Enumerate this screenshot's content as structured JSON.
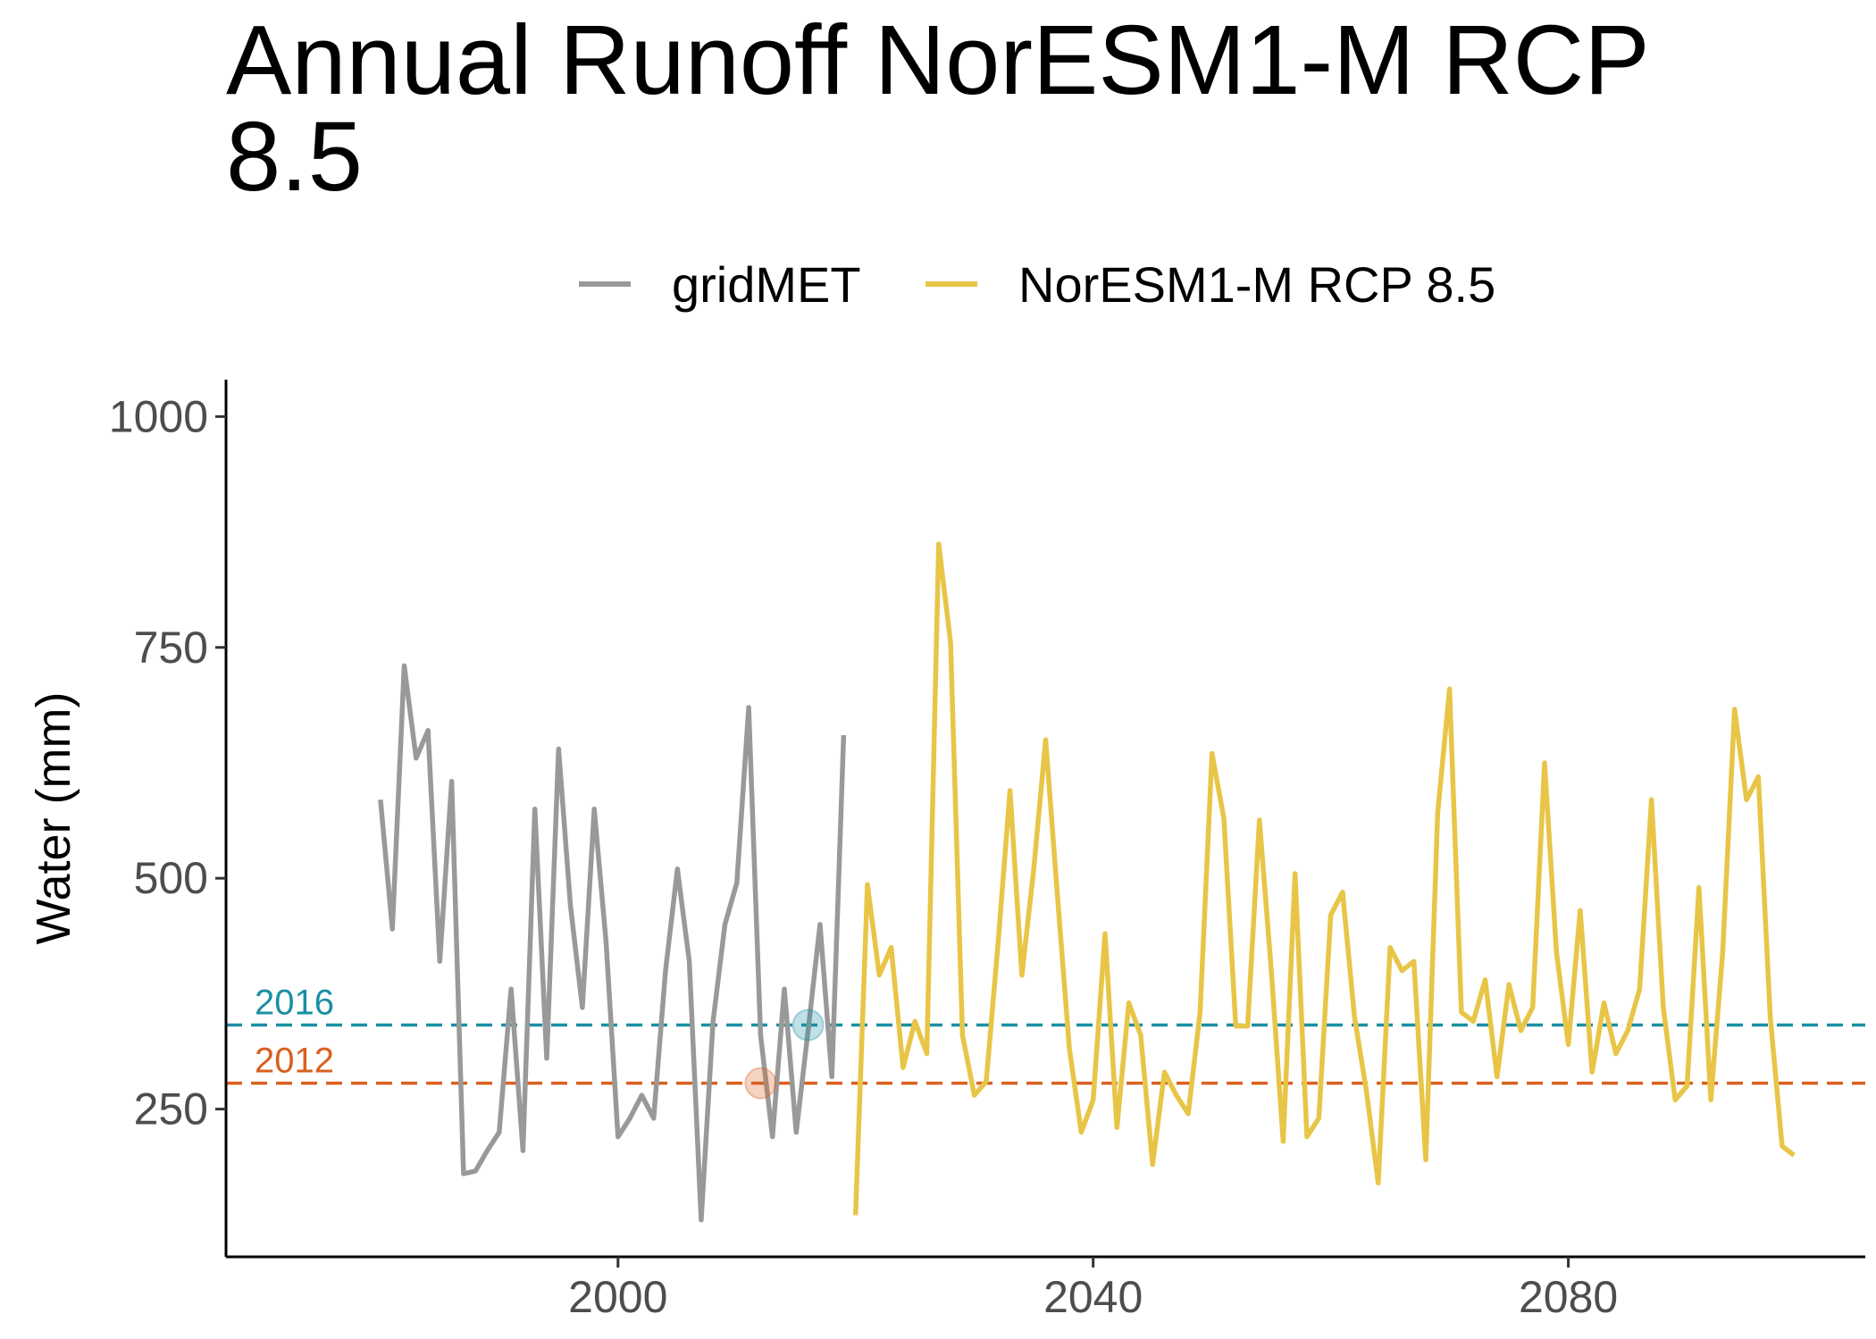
{
  "chart_data": {
    "type": "line",
    "title": "Annual Runoff NorESM1-M RCP 8.5",
    "xlabel": "",
    "ylabel": "Water (mm)",
    "xlim": [
      1967,
      2105
    ],
    "ylim": [
      90,
      1040
    ],
    "x_ticks": [
      2000,
      2040,
      2080
    ],
    "y_ticks": [
      250,
      500,
      750,
      1000
    ],
    "grid": false,
    "legend_position": "top",
    "series": [
      {
        "name": "gridMET",
        "color": "#999999",
        "x": [
          1980,
          1981,
          1982,
          1983,
          1984,
          1985,
          1986,
          1987,
          1988,
          1989,
          1990,
          1991,
          1992,
          1993,
          1994,
          1995,
          1996,
          1997,
          1998,
          1999,
          2000,
          2001,
          2002,
          2003,
          2004,
          2005,
          2006,
          2007,
          2008,
          2009,
          2010,
          2011,
          2012,
          2013,
          2014,
          2015,
          2016,
          2017,
          2018,
          2019
        ],
        "y": [
          585,
          445,
          730,
          630,
          660,
          410,
          605,
          180,
          183,
          205,
          225,
          380,
          205,
          575,
          305,
          640,
          470,
          360,
          575,
          430,
          220,
          240,
          265,
          240,
          400,
          510,
          410,
          130,
          345,
          450,
          495,
          685,
          330,
          220,
          380,
          225,
          335,
          450,
          285,
          655
        ]
      },
      {
        "name": "NorESM1-M RCP 8.5",
        "color": "#e8c547",
        "x": [
          2020,
          2021,
          2022,
          2023,
          2024,
          2025,
          2026,
          2027,
          2028,
          2029,
          2030,
          2031,
          2032,
          2033,
          2034,
          2035,
          2036,
          2037,
          2038,
          2039,
          2040,
          2041,
          2042,
          2043,
          2044,
          2045,
          2046,
          2047,
          2048,
          2049,
          2050,
          2051,
          2052,
          2053,
          2054,
          2055,
          2056,
          2057,
          2058,
          2059,
          2060,
          2061,
          2062,
          2063,
          2064,
          2065,
          2066,
          2067,
          2068,
          2069,
          2070,
          2071,
          2072,
          2073,
          2074,
          2075,
          2076,
          2077,
          2078,
          2079,
          2080,
          2081,
          2082,
          2083,
          2084,
          2085,
          2086,
          2087,
          2088,
          2089,
          2090,
          2091,
          2092,
          2093,
          2094,
          2095,
          2096,
          2097,
          2098,
          2099
        ],
        "y": [
          135,
          493,
          395,
          425,
          295,
          345,
          310,
          862,
          755,
          330,
          265,
          280,
          430,
          595,
          395,
          510,
          650,
          480,
          315,
          225,
          260,
          440,
          230,
          365,
          330,
          190,
          290,
          265,
          245,
          355,
          635,
          565,
          340,
          340,
          563,
          400,
          215,
          505,
          220,
          240,
          460,
          485,
          350,
          270,
          170,
          425,
          400,
          410,
          195,
          570,
          705,
          355,
          345,
          390,
          285,
          385,
          335,
          360,
          625,
          420,
          320,
          465,
          290,
          365,
          310,
          335,
          380,
          585,
          360,
          260,
          275,
          490,
          260,
          420,
          683,
          585,
          610,
          350,
          210,
          200
        ]
      }
    ],
    "reference_lines": [
      {
        "label": "2016",
        "y": 341,
        "color": "#1a8fa3",
        "marker_x": 2016
      },
      {
        "label": "2012",
        "y": 278,
        "color": "#d9601f",
        "marker_x": 2012
      }
    ]
  }
}
